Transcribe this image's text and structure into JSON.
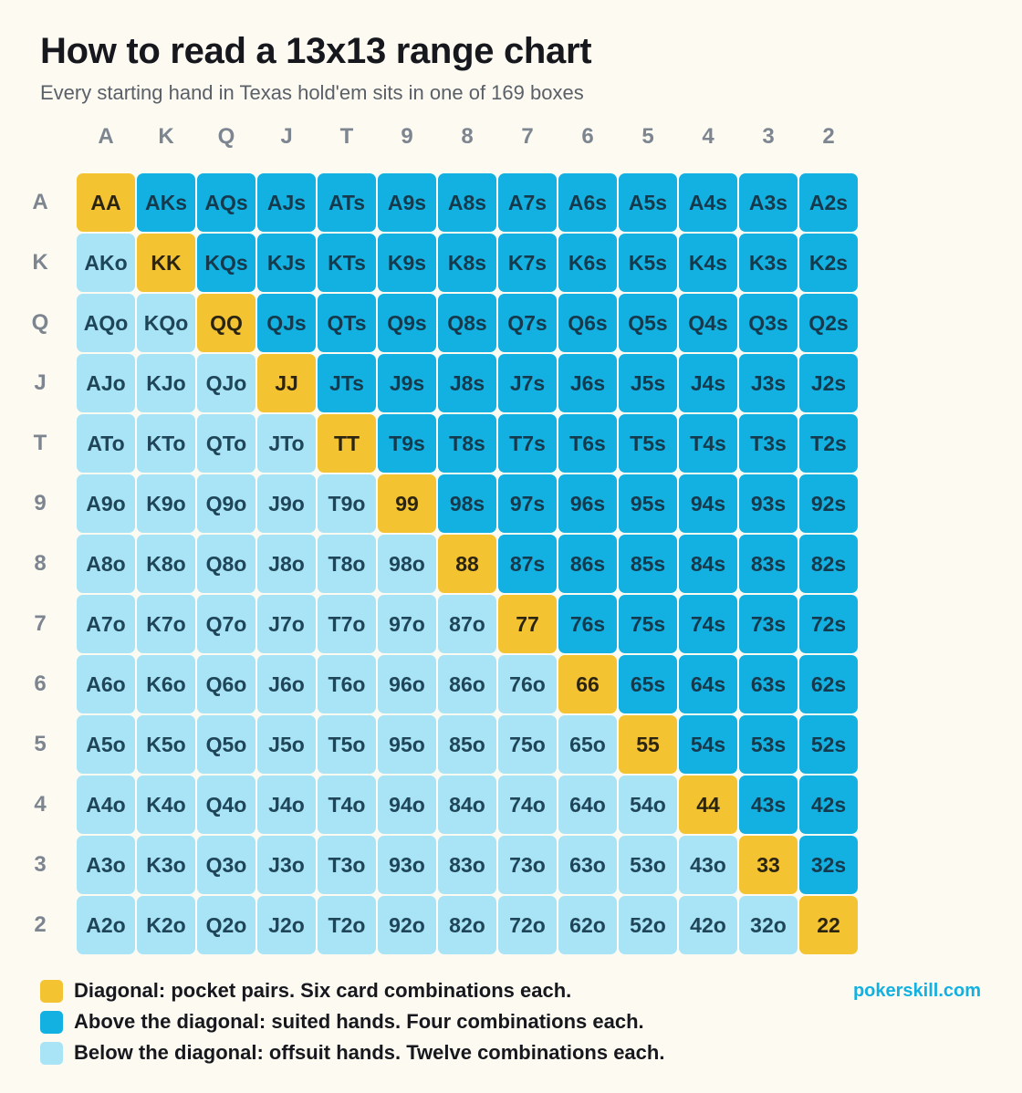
{
  "title": "How to read a 13x13 range chart",
  "subtitle": "Every starting hand in Texas hold'em sits in one of 169 boxes",
  "ranks": [
    "A",
    "K",
    "Q",
    "J",
    "T",
    "9",
    "8",
    "7",
    "6",
    "5",
    "4",
    "3",
    "2"
  ],
  "grid": {
    "rows": [
      [
        "AA",
        "AKs",
        "AQs",
        "AJs",
        "ATs",
        "A9s",
        "A8s",
        "A7s",
        "A6s",
        "A5s",
        "A4s",
        "A3s",
        "A2s"
      ],
      [
        "AKo",
        "KK",
        "KQs",
        "KJs",
        "KTs",
        "K9s",
        "K8s",
        "K7s",
        "K6s",
        "K5s",
        "K4s",
        "K3s",
        "K2s"
      ],
      [
        "AQo",
        "KQo",
        "QQ",
        "QJs",
        "QTs",
        "Q9s",
        "Q8s",
        "Q7s",
        "Q6s",
        "Q5s",
        "Q4s",
        "Q3s",
        "Q2s"
      ],
      [
        "AJo",
        "KJo",
        "QJo",
        "JJ",
        "JTs",
        "J9s",
        "J8s",
        "J7s",
        "J6s",
        "J5s",
        "J4s",
        "J3s",
        "J2s"
      ],
      [
        "ATo",
        "KTo",
        "QTo",
        "JTo",
        "TT",
        "T9s",
        "T8s",
        "T7s",
        "T6s",
        "T5s",
        "T4s",
        "T3s",
        "T2s"
      ],
      [
        "A9o",
        "K9o",
        "Q9o",
        "J9o",
        "T9o",
        "99",
        "98s",
        "97s",
        "96s",
        "95s",
        "94s",
        "93s",
        "92s"
      ],
      [
        "A8o",
        "K8o",
        "Q8o",
        "J8o",
        "T8o",
        "98o",
        "88",
        "87s",
        "86s",
        "85s",
        "84s",
        "83s",
        "82s"
      ],
      [
        "A7o",
        "K7o",
        "Q7o",
        "J7o",
        "T7o",
        "97o",
        "87o",
        "77",
        "76s",
        "75s",
        "74s",
        "73s",
        "72s"
      ],
      [
        "A6o",
        "K6o",
        "Q6o",
        "J6o",
        "T6o",
        "96o",
        "86o",
        "76o",
        "66",
        "65s",
        "64s",
        "63s",
        "62s"
      ],
      [
        "A5o",
        "K5o",
        "Q5o",
        "J5o",
        "T5o",
        "95o",
        "85o",
        "75o",
        "65o",
        "55",
        "54s",
        "53s",
        "52s"
      ],
      [
        "A4o",
        "K4o",
        "Q4o",
        "J4o",
        "T4o",
        "94o",
        "84o",
        "74o",
        "64o",
        "54o",
        "44",
        "43s",
        "42s"
      ],
      [
        "A3o",
        "K3o",
        "Q3o",
        "J3o",
        "T3o",
        "93o",
        "83o",
        "73o",
        "63o",
        "53o",
        "43o",
        "33",
        "32s"
      ],
      [
        "A2o",
        "K2o",
        "Q2o",
        "J2o",
        "T2o",
        "92o",
        "82o",
        "72o",
        "62o",
        "52o",
        "42o",
        "32o",
        "22"
      ]
    ]
  },
  "legend": [
    {
      "label": "Diagonal: pocket pairs. Six card combinations each.",
      "color": "#f3c332"
    },
    {
      "label": "Above the diagonal: suited hands. Four combinations each.",
      "color": "#12b1e1"
    },
    {
      "label": "Below the diagonal: offsuit hands. Twelve combinations each.",
      "color": "#a8e3f6"
    }
  ],
  "brand": "pokerskill.com",
  "colors": {
    "pair": "#f3c332",
    "suited": "#12b1e1",
    "offsuit": "#a8e3f6"
  }
}
